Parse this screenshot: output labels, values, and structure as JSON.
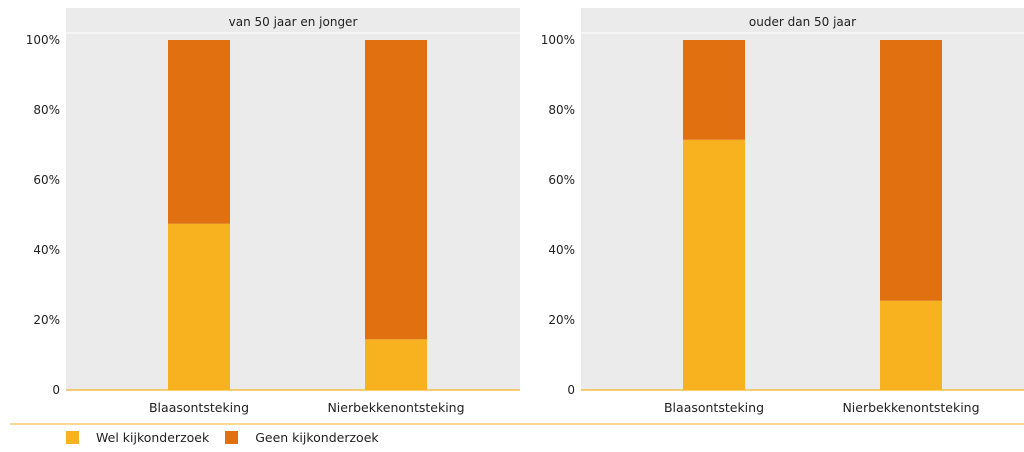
{
  "chart_data": {
    "type": "bar",
    "stacked": true,
    "percent": true,
    "ylim": [
      0,
      100
    ],
    "yticks": [
      "0",
      "20%",
      "40%",
      "60%",
      "80%",
      "100%"
    ],
    "grid": false,
    "legend_position": "bottom-left",
    "categories": [
      "Blaasontsteking",
      "Nierbekkenontsteking"
    ],
    "series": [
      {
        "name": "Wel kijkonderzoek",
        "color": "#f8b220"
      },
      {
        "name": "Geen kijkonderzoek",
        "color": "#e07010"
      }
    ],
    "panels": [
      {
        "title": "van 50 jaar en jonger",
        "values": [
          [
            47.5,
            52.5
          ],
          [
            14.5,
            85.5
          ]
        ]
      },
      {
        "title": "ouder dan 50 jaar",
        "values": [
          [
            71.5,
            28.5
          ],
          [
            25.5,
            74.5
          ]
        ]
      }
    ]
  },
  "legend": {
    "items": [
      {
        "label": "Wel kijkonderzoek",
        "color": "#f8b220"
      },
      {
        "label": "Geen kijkonderzoek",
        "color": "#e07010"
      }
    ]
  }
}
